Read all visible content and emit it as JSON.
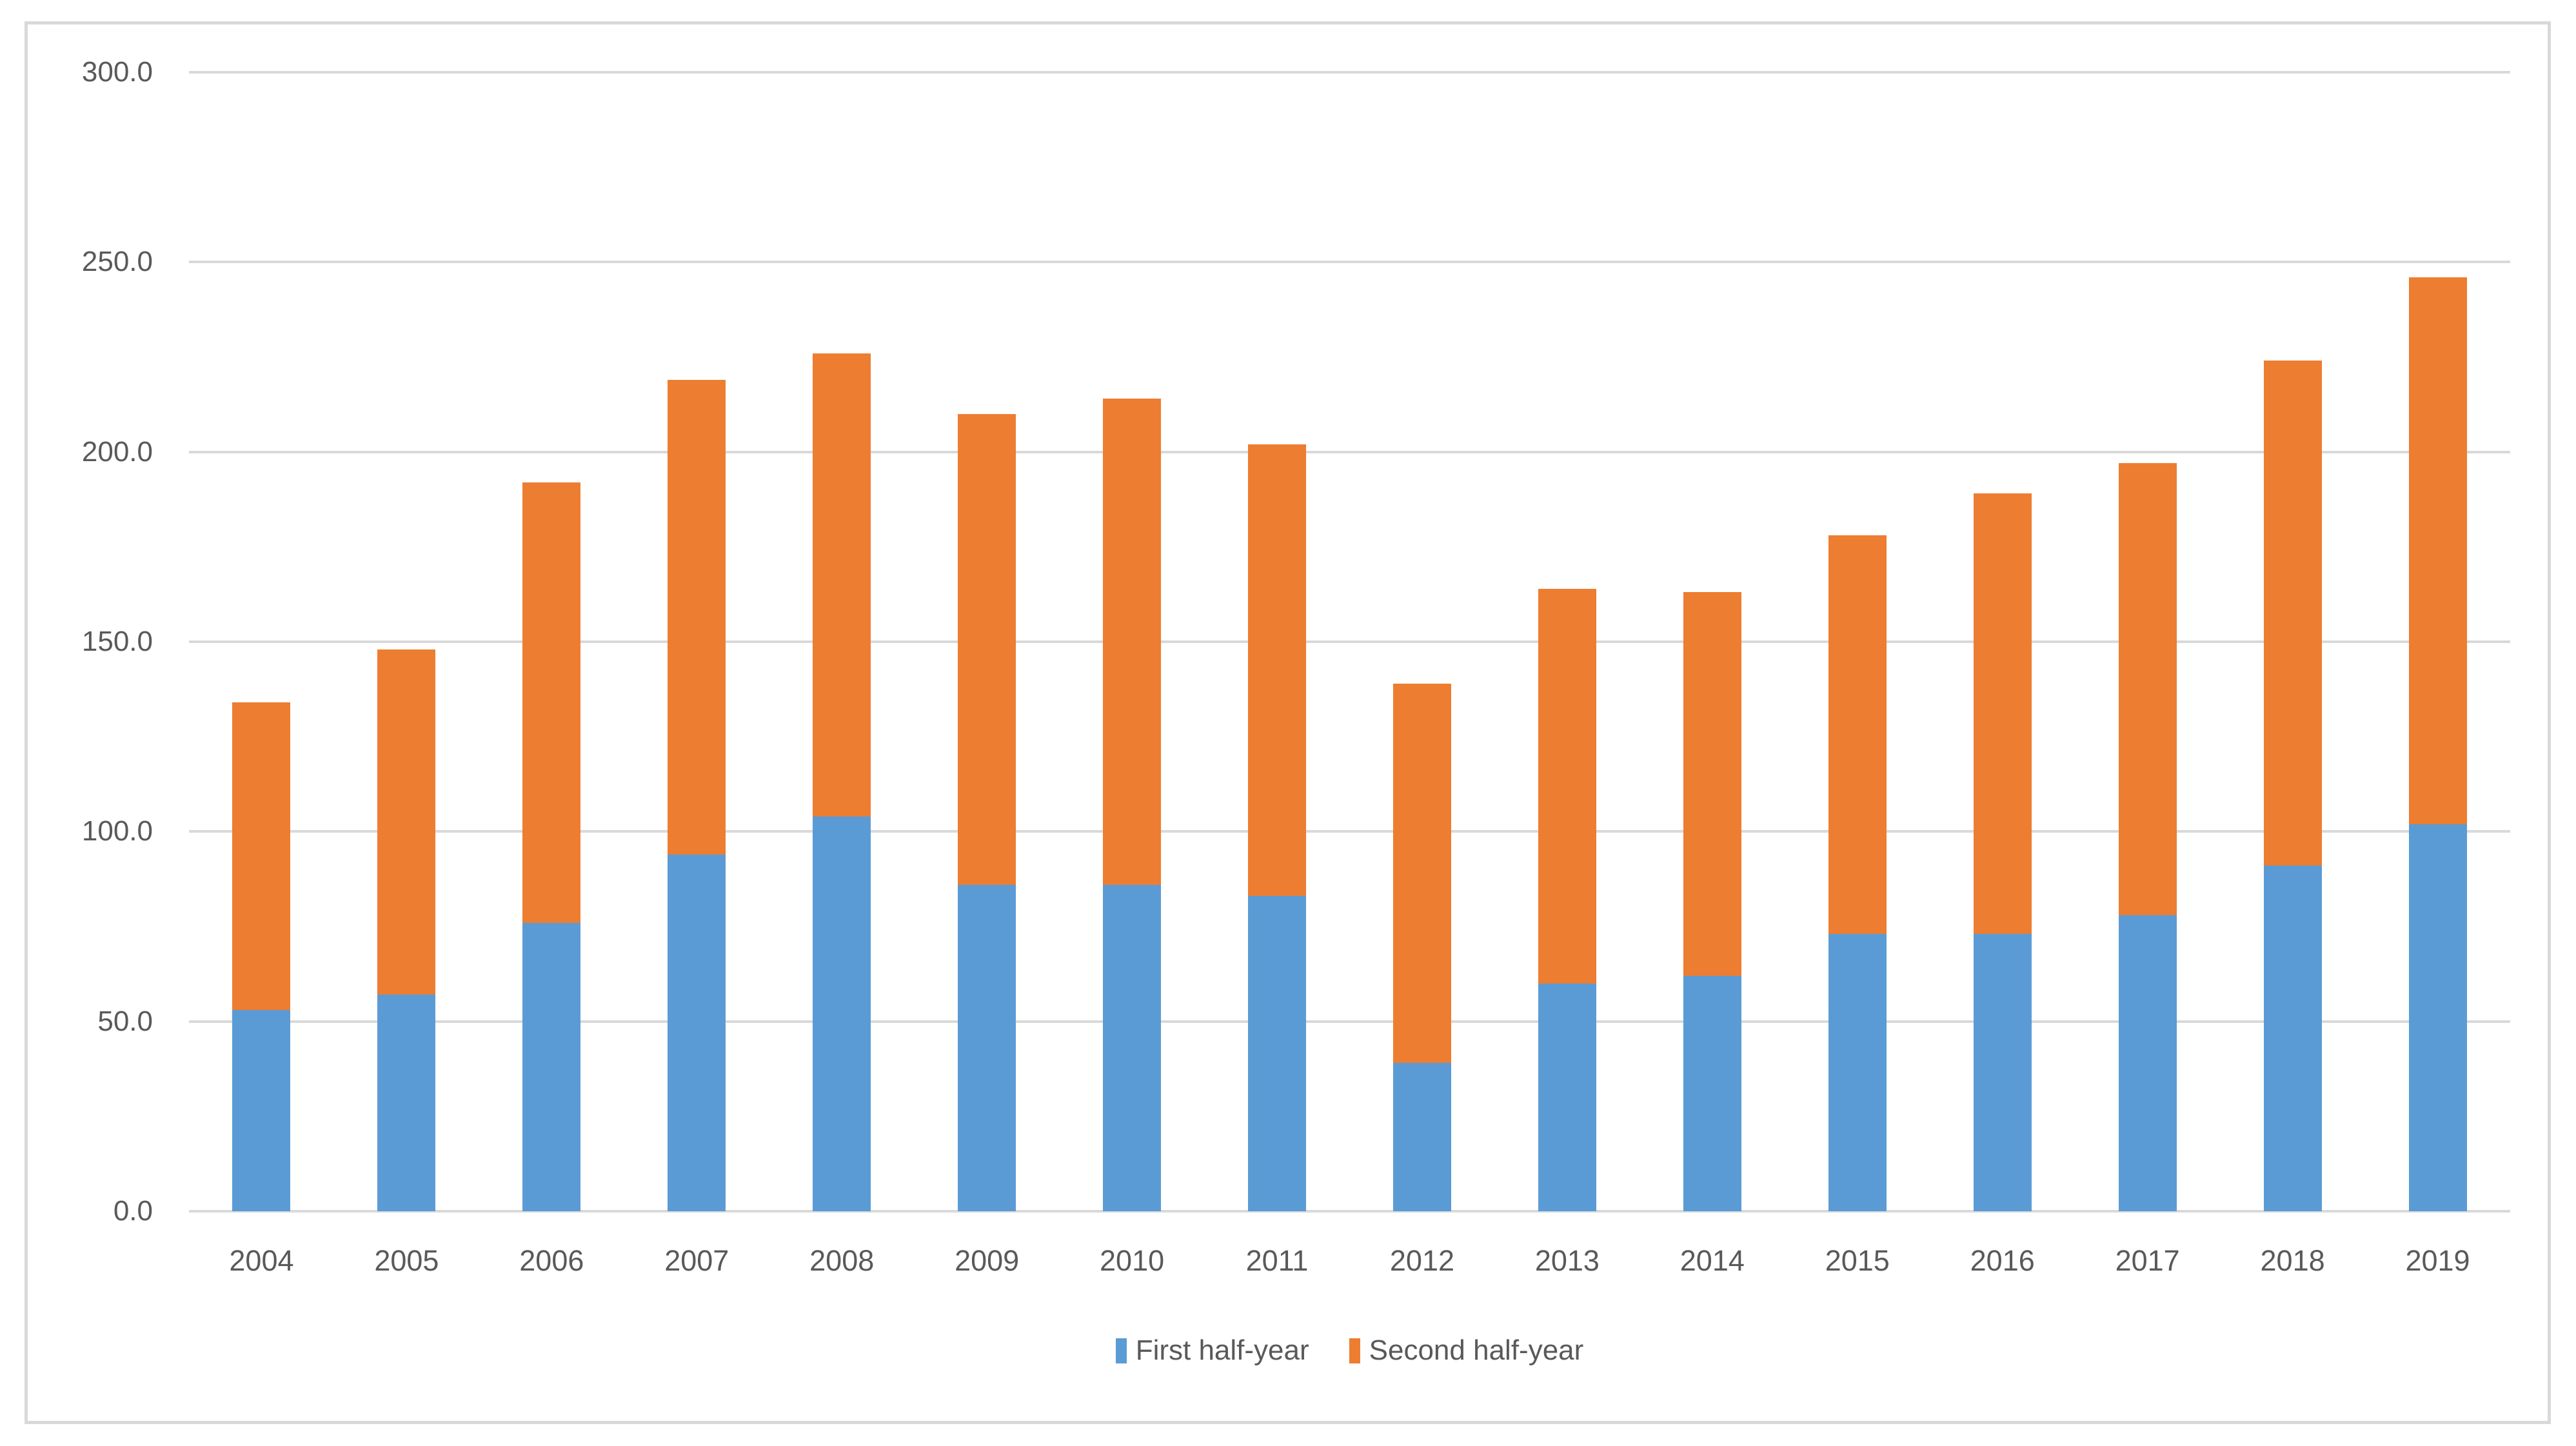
{
  "chart_data": {
    "type": "bar",
    "stacked": true,
    "title": "",
    "categories": [
      "2004",
      "2005",
      "2006",
      "2007",
      "2008",
      "2009",
      "2010",
      "2011",
      "2012",
      "2013",
      "2014",
      "2015",
      "2016",
      "2017",
      "2018",
      "2019"
    ],
    "series": [
      {
        "name": "First half-year",
        "color": "#5B9BD5",
        "values": [
          53,
          57,
          76,
          94,
          104,
          86,
          86,
          83,
          39,
          60,
          62,
          73,
          73,
          78,
          91,
          102
        ]
      },
      {
        "name": "Second half-year",
        "color": "#ED7D31",
        "values": [
          81,
          91,
          116,
          125,
          122,
          124,
          128,
          119,
          100,
          104,
          101,
          105,
          116,
          119,
          133,
          144
        ]
      }
    ],
    "totals": [
      134,
      148,
      192,
      219,
      226,
      210,
      214,
      202,
      139,
      164,
      163,
      178,
      189,
      197,
      224,
      246
    ],
    "ylim": [
      0,
      300
    ],
    "ytick_step": 50,
    "ytick_labels": [
      "0.0",
      "50.0",
      "100.0",
      "150.0",
      "200.0",
      "250.0",
      "300.0"
    ],
    "xlabel": "",
    "ylabel": "",
    "grid": true,
    "legend_position": "bottom"
  },
  "style": {
    "gridline_color": "#D9D9D9",
    "frame_border_color": "#D9D9D9",
    "tick_text_color": "#595959",
    "background_color": "#FFFFFF"
  }
}
